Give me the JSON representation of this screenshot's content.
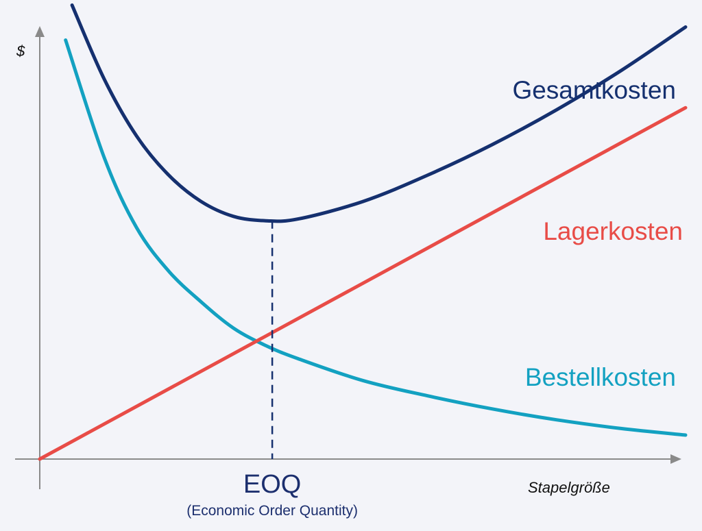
{
  "chart_data": {
    "type": "line",
    "title": "",
    "xlabel": "Stapelgröße",
    "ylabel": "$",
    "grid": false,
    "xlim": [
      0,
      10
    ],
    "ylim": [
      0,
      10
    ],
    "series": [
      {
        "name": "Gesamtkosten",
        "color": "#15306f",
        "x": [
          0.5,
          1,
          1.5,
          2,
          2.5,
          3,
          3.5,
          4,
          5,
          6,
          7,
          8,
          9,
          10
        ],
        "values": [
          10.4,
          8.7,
          7.4,
          6.5,
          5.9,
          5.56,
          5.46,
          5.5,
          5.9,
          6.5,
          7.2,
          8.0,
          8.9,
          9.9
        ]
      },
      {
        "name": "Lagerkosten",
        "color": "#e84c47",
        "x": [
          0,
          10
        ],
        "values": [
          0,
          8.05
        ]
      },
      {
        "name": "Bestellkosten",
        "color": "#13a1c1",
        "x": [
          0.4,
          1,
          1.5,
          2,
          2.5,
          3,
          3.5,
          4,
          5,
          6,
          7,
          8,
          9,
          10
        ],
        "values": [
          9.6,
          6.9,
          5.3,
          4.3,
          3.6,
          3.0,
          2.6,
          2.3,
          1.8,
          1.45,
          1.15,
          0.9,
          0.7,
          0.55
        ]
      }
    ],
    "annotations": [
      {
        "label": "EOQ",
        "sublabel": "(Economic Order Quantity)",
        "x": 3.6,
        "style": "dashed-vertical"
      }
    ]
  }
}
